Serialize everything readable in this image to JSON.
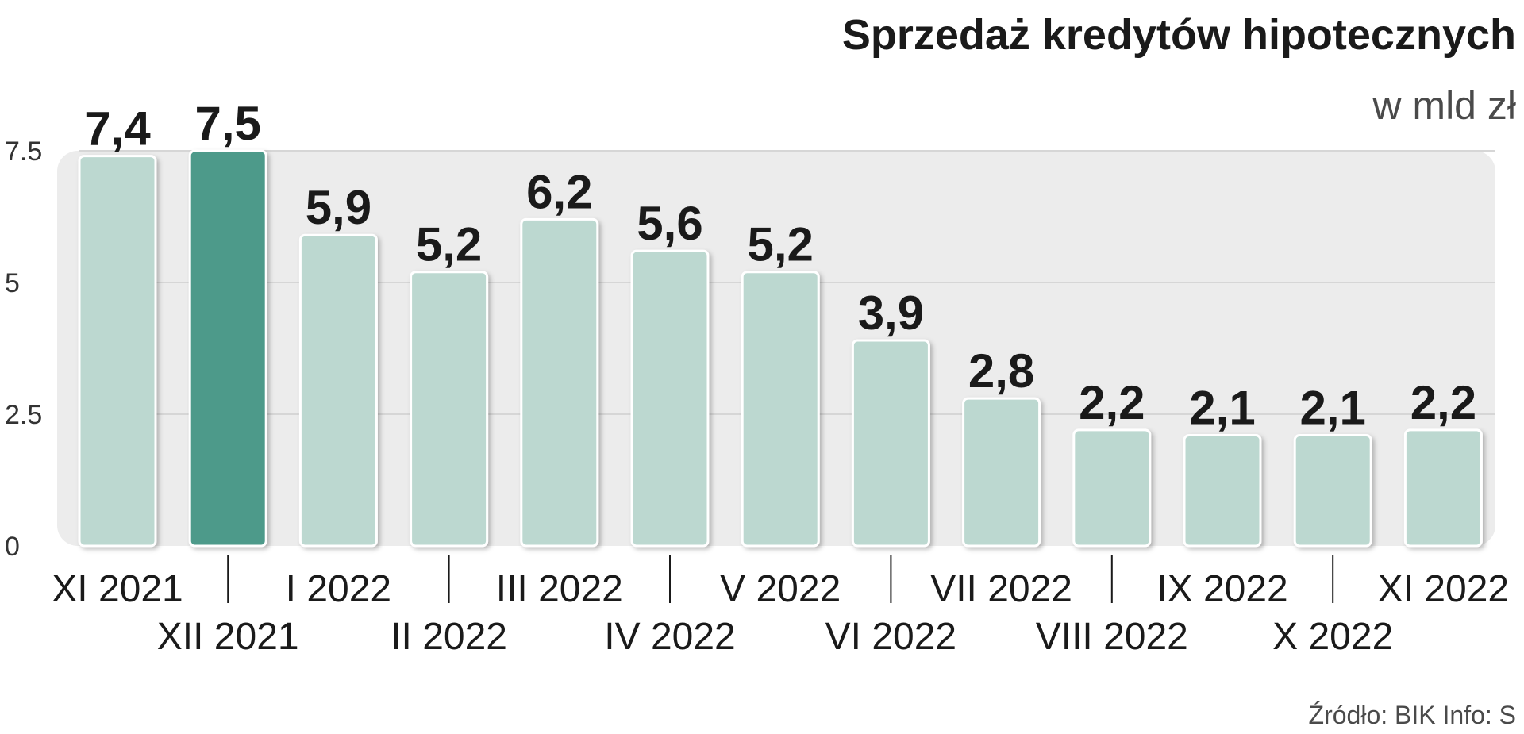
{
  "chart_data": {
    "type": "bar",
    "title": "Sprzedaż kredytów hipotecznych",
    "subtitle": "w mld zł",
    "categories": [
      "XI 2021",
      "XII 2021",
      "I 2022",
      "II 2022",
      "III 2022",
      "IV 2022",
      "V 2022",
      "VI 2022",
      "VII 2022",
      "VIII 2022",
      "IX 2022",
      "X 2022",
      "XI 2022"
    ],
    "values": [
      7.4,
      7.5,
      5.9,
      5.2,
      6.2,
      5.6,
      5.2,
      3.9,
      2.8,
      2.2,
      2.1,
      2.1,
      2.2
    ],
    "value_labels": [
      "7,4",
      "7,5",
      "5,9",
      "5,2",
      "6,2",
      "5,6",
      "5,2",
      "3,9",
      "2,8",
      "2,2",
      "2,1",
      "2,1",
      "2,2"
    ],
    "ylim": [
      0,
      7.5
    ],
    "yticks": [
      0,
      2.5,
      5,
      7.5
    ],
    "ytick_labels": [
      "0",
      "2.5",
      "5",
      "7.5"
    ],
    "highlight_index": 1,
    "grid": true,
    "colors": {
      "bar": "#bcd8d0",
      "bar_highlight": "#4e9a8a",
      "bar_stroke": "#ffffff",
      "panel": "#ececec",
      "grid": "#d6d6d6"
    }
  },
  "footer": {
    "source": "Źródło: BIK   Info: S"
  }
}
